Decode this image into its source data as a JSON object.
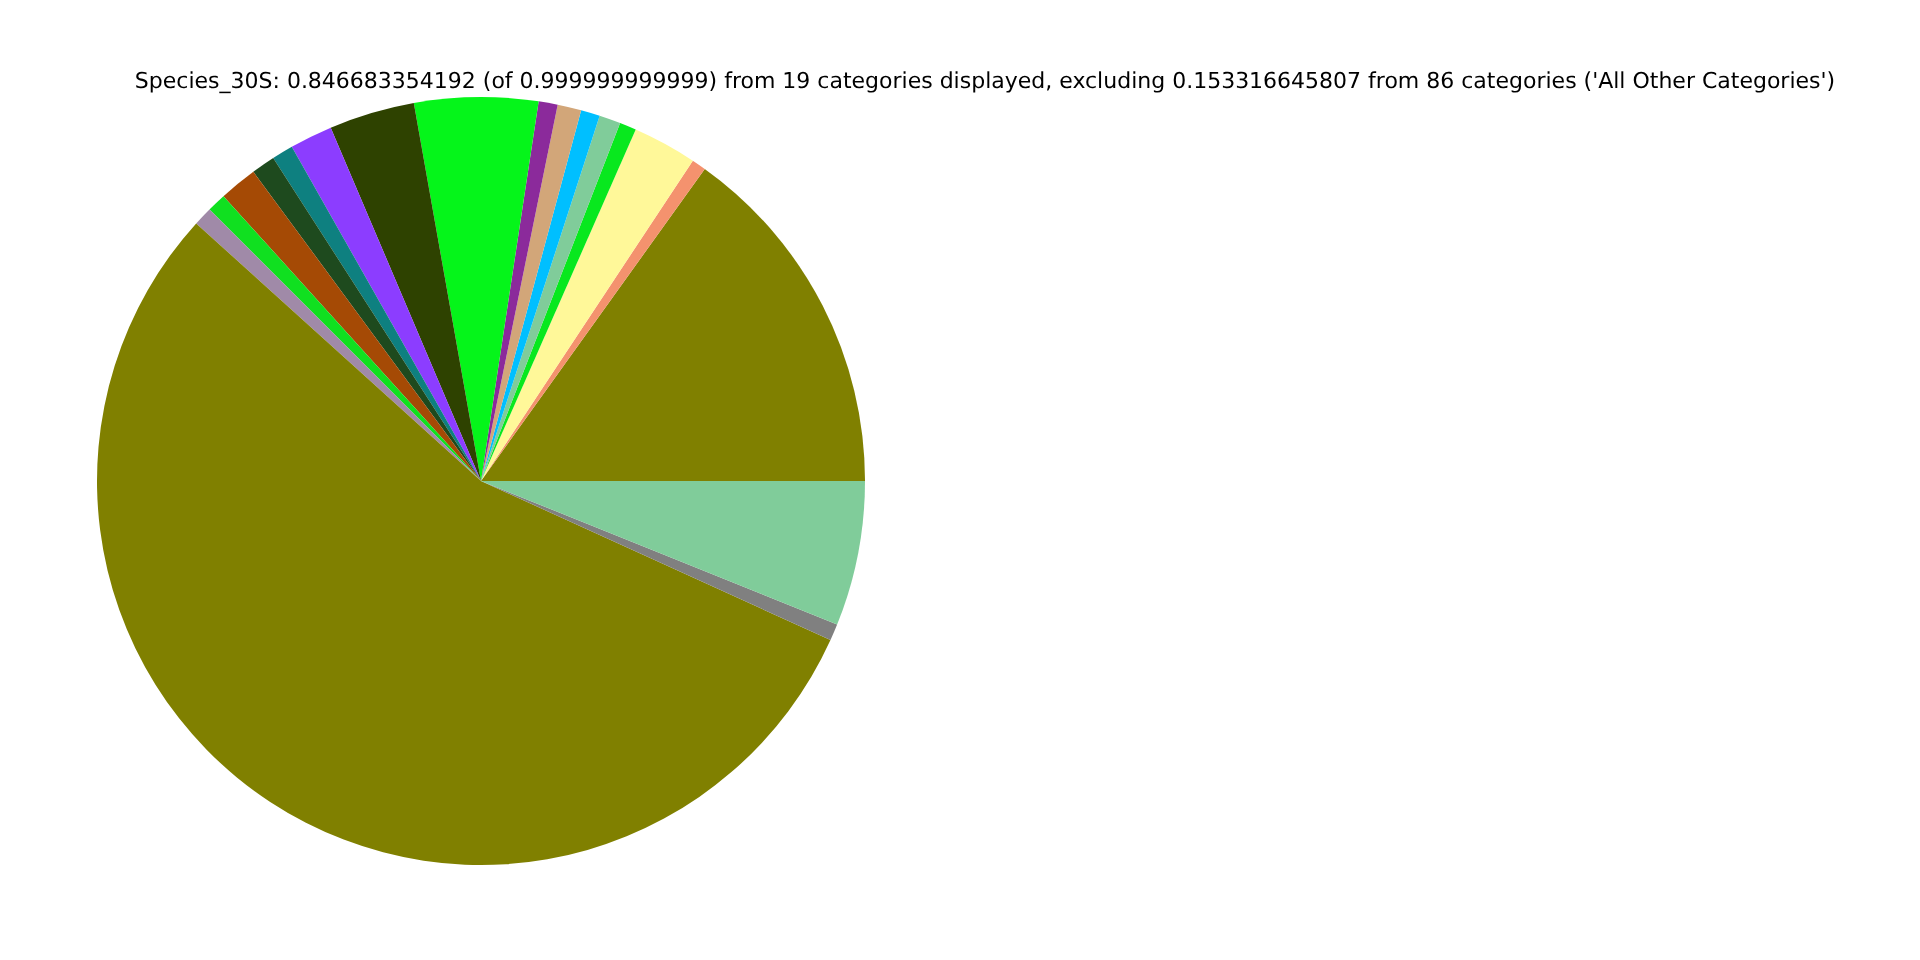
{
  "chart_data": {
    "type": "pie",
    "title": "Species_30S: 0.846683354192 (of 0.999999999999) from 19 categories displayed, excluding 0.153316645807 from 86 categories ('All Other Categories')",
    "categories": [
      null,
      null,
      null,
      null,
      null,
      null,
      null,
      null,
      null,
      null,
      null,
      null,
      null,
      null,
      null,
      null,
      null,
      null,
      null
    ],
    "values": [
      15.1,
      0.6,
      2.7,
      0.7,
      0.9,
      0.8,
      1.0,
      0.8,
      5.2,
      3.6,
      1.8,
      0.9,
      1.0,
      1.6,
      0.8,
      0.8,
      54.9,
      0.7,
      6.1
    ],
    "colors": [
      "#808000",
      "#f4926e",
      "#fff899",
      "#08e81e",
      "#80cc9a",
      "#00bfff",
      "#d2a679",
      "#8b2a9b",
      "#05f51a",
      "#2e4200",
      "#8c3dff",
      "#0e8080",
      "#1e4a1e",
      "#a54a05",
      "#10e020",
      "#a08aa8",
      "#808000",
      "#808080",
      "#80cc9a"
    ]
  }
}
